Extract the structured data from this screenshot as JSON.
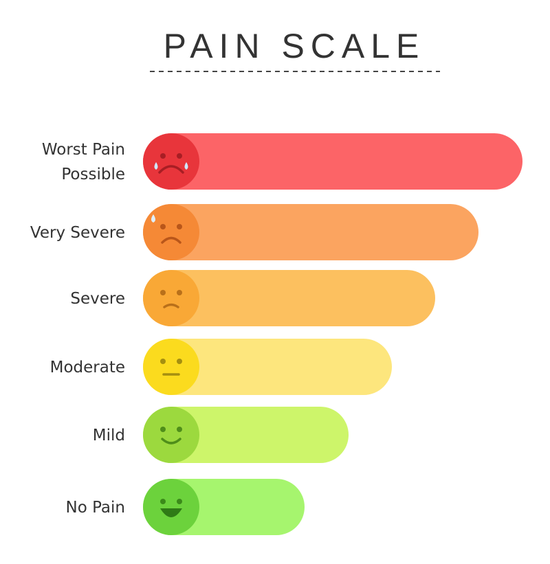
{
  "header": {
    "title": "PAIN SCALE"
  },
  "levels": [
    {
      "label_lines": [
        "Worst Pain",
        "Possible"
      ]
    },
    {
      "label_lines": [
        "Very Severe"
      ]
    },
    {
      "label_lines": [
        "Severe"
      ]
    },
    {
      "label_lines": [
        "Moderate"
      ]
    },
    {
      "label_lines": [
        "Mild"
      ]
    },
    {
      "label_lines": [
        "No Pain"
      ]
    }
  ]
}
